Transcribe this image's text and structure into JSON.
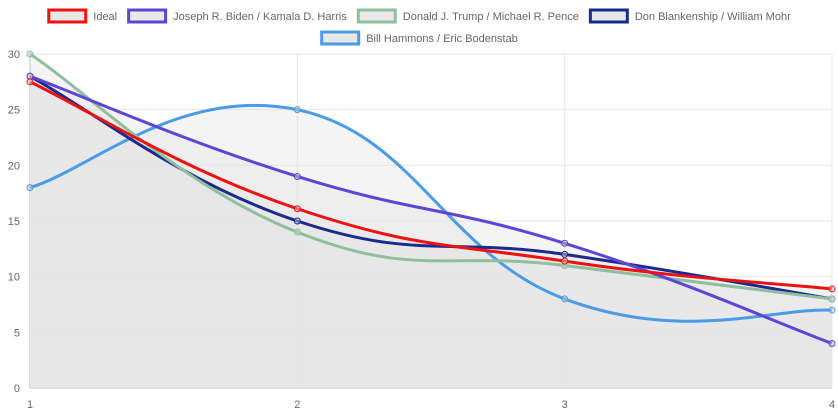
{
  "chart_data": {
    "type": "line",
    "x": [
      1,
      2,
      3,
      4
    ],
    "ylim": [
      0,
      30
    ],
    "ytick_step": 5,
    "grid": true,
    "legend_position": "top",
    "title": "",
    "xlabel": "",
    "ylabel": "",
    "series": [
      {
        "name": "Ideal",
        "values": [
          27.5,
          16.1,
          11.4,
          8.9
        ],
        "color": "#ee1111",
        "fill": "#e4e4e4"
      },
      {
        "name": "Joseph R. Biden / Kamala D. Harris",
        "values": [
          28,
          19,
          13,
          4
        ],
        "color": "#5e45d6",
        "fill": "#e4e4e4"
      },
      {
        "name": "Donald J. Trump / Michael R. Pence",
        "values": [
          30,
          14,
          11,
          8
        ],
        "color": "#8fbf9f",
        "fill": "#e4e4e4"
      },
      {
        "name": "Don Blankenship / William Mohr",
        "values": [
          28,
          15,
          12,
          8
        ],
        "color": "#1a2a8f",
        "fill": "#e4e4e4"
      },
      {
        "name": "Bill Hammons / Eric Bodenstab",
        "values": [
          18,
          25,
          8,
          7
        ],
        "color": "#4a9be8",
        "fill": "#e4e4e4"
      }
    ]
  }
}
